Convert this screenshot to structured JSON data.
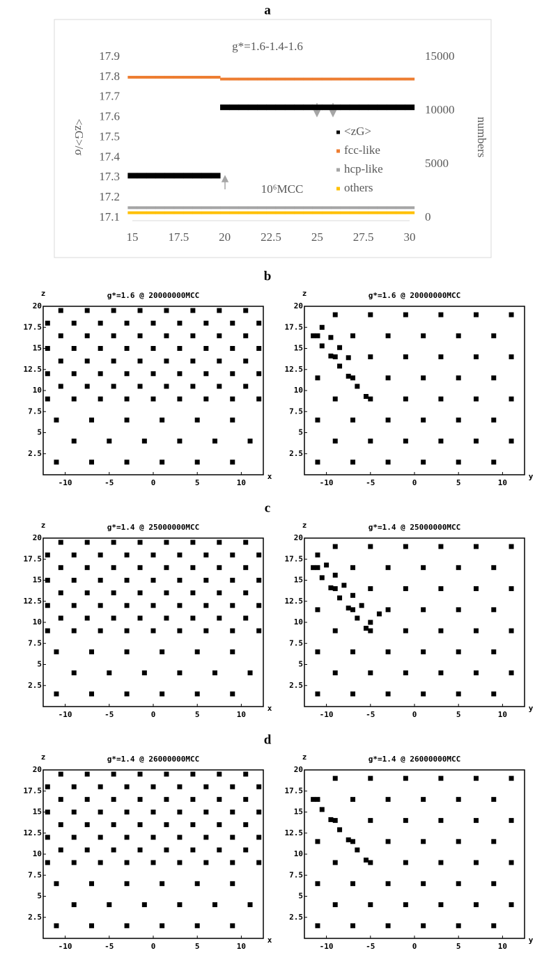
{
  "panels": [
    "a",
    "b",
    "c",
    "d"
  ],
  "chart_data": [
    {
      "type": "scatter",
      "title": "g*=1.6-1.4-1.6",
      "x_label": "10⁶MCC",
      "y_label": "<zG>/σ",
      "y2_label": "numbers",
      "xlim": [
        15,
        30
      ],
      "ylim": [
        17.1,
        17.9
      ],
      "y2lim": [
        0,
        15000
      ],
      "xticks": [
        15,
        17.5,
        20,
        22.5,
        25,
        27.5,
        30
      ],
      "yticks": [
        17.1,
        17.2,
        17.3,
        17.4,
        17.5,
        17.6,
        17.7,
        17.8,
        17.9
      ],
      "y2ticks": [
        0,
        5000,
        10000,
        15000
      ],
      "legend": "right",
      "x": [
        15,
        15.5,
        16,
        16.5,
        17,
        17.5,
        18,
        18.5,
        19,
        19.5,
        20,
        20.5,
        21,
        21.5,
        22,
        22.5,
        23,
        23.5,
        24,
        24.5,
        25,
        25.5,
        26,
        26.5,
        27,
        27.5,
        28,
        28.5,
        29,
        29.5,
        30
      ],
      "series": [
        {
          "name": "<zG>",
          "color": "#000000",
          "values": [
            17.31,
            17.31,
            17.31,
            17.31,
            17.31,
            17.31,
            17.31,
            17.31,
            17.31,
            17.31,
            17.65,
            17.65,
            17.65,
            17.65,
            17.65,
            17.65,
            17.65,
            17.65,
            17.65,
            17.65,
            17.65,
            17.65,
            17.65,
            17.65,
            17.65,
            17.65,
            17.65,
            17.65,
            17.65,
            17.65,
            17.65
          ]
        },
        {
          "name": "fcc-like",
          "color": "#ed7d31",
          "axis": "y2",
          "values": [
            13120,
            13120,
            13120,
            13120,
            13120,
            13120,
            13120,
            13120,
            13120,
            13120,
            12950,
            12950,
            12950,
            12950,
            12950,
            12950,
            12950,
            12950,
            12950,
            12950,
            12950,
            12950,
            12950,
            12950,
            12950,
            12950,
            12950,
            12950,
            12950,
            12950,
            12950
          ]
        },
        {
          "name": "hcp-like",
          "color": "#a5a5a5",
          "axis": "y2",
          "values": [
            950,
            950,
            950,
            950,
            950,
            950,
            950,
            950,
            950,
            950,
            950,
            950,
            950,
            950,
            950,
            950,
            950,
            950,
            950,
            950,
            950,
            950,
            950,
            950,
            950,
            950,
            950,
            950,
            950,
            950,
            950
          ]
        },
        {
          "name": "others",
          "color": "#ffc000",
          "axis": "y2",
          "values": [
            480,
            480,
            480,
            480,
            480,
            480,
            480,
            480,
            480,
            480,
            480,
            480,
            480,
            480,
            480,
            480,
            480,
            480,
            480,
            480,
            480,
            480,
            480,
            480,
            480,
            480,
            480,
            480,
            480,
            480,
            480
          ]
        }
      ]
    },
    {
      "type": "scatter",
      "title": "g*=1.6 @ 20000000MCC",
      "x_label": "x",
      "y_label": "z",
      "xlim": [
        -12.5,
        12.5
      ],
      "ylim": [
        0,
        20
      ],
      "xticks": [
        -10,
        -5,
        0,
        5,
        10
      ],
      "yticks": [
        2.5,
        5,
        7.5,
        10,
        12.5,
        15,
        17.5,
        20
      ],
      "color": "#000000",
      "x": [
        -11,
        -7,
        -3,
        1,
        5,
        9,
        -9,
        -5,
        -1,
        3,
        7,
        11,
        -11,
        -7,
        -3,
        1,
        5,
        9,
        -12,
        -9,
        -6,
        -3,
        0,
        3,
        6,
        9,
        12,
        -10.5,
        -7.5,
        -4.5,
        -1.5,
        1.5,
        4.5,
        7.5,
        10.5,
        -12,
        -9,
        -6,
        -3,
        0,
        3,
        6,
        9,
        12,
        -10.5,
        -7.5,
        -4.5,
        -1.5,
        1.5,
        4.5,
        7.5,
        10.5,
        -12,
        -9,
        -6,
        -3,
        0,
        3,
        6,
        9,
        12,
        -10.5,
        -7.5,
        -4.5,
        -1.5,
        1.5,
        4.5,
        7.5,
        10.5,
        -12,
        -9,
        -6,
        -3,
        0,
        3,
        6,
        9,
        12,
        -10.5,
        -7.5,
        -4.5,
        -1.5,
        1.5,
        4.5,
        7.5,
        10.5
      ],
      "values": [
        1.5,
        1.5,
        1.5,
        1.5,
        1.5,
        1.5,
        4,
        4,
        4,
        4,
        4,
        4,
        6.5,
        6.5,
        6.5,
        6.5,
        6.5,
        6.5,
        9,
        9,
        9,
        9,
        9,
        9,
        9,
        9,
        9,
        10.5,
        10.5,
        10.5,
        10.5,
        10.5,
        10.5,
        10.5,
        10.5,
        12,
        12,
        12,
        12,
        12,
        12,
        12,
        12,
        12,
        13.5,
        13.5,
        13.5,
        13.5,
        13.5,
        13.5,
        13.5,
        13.5,
        15,
        15,
        15,
        15,
        15,
        15,
        15,
        15,
        15,
        16.5,
        16.5,
        16.5,
        16.5,
        16.5,
        16.5,
        16.5,
        16.5,
        18,
        18,
        18,
        18,
        18,
        18,
        18,
        18,
        18,
        19.5,
        19.5,
        19.5,
        19.5,
        19.5,
        19.5,
        19.5,
        19.5
      ]
    },
    {
      "type": "scatter",
      "title": "g*=1.6 @ 20000000MCC",
      "x_label": "y",
      "y_label": "z",
      "xlim": [
        -12.5,
        12.5
      ],
      "ylim": [
        0,
        20
      ],
      "xticks": [
        -10,
        -5,
        0,
        5,
        10
      ],
      "yticks": [
        2.5,
        5,
        7.5,
        10,
        12.5,
        15,
        17.5,
        20
      ],
      "color": "#000000",
      "x": [
        -11,
        -7,
        -3,
        1,
        5,
        9,
        -9,
        -5,
        -1,
        3,
        7,
        11,
        -11,
        -7,
        -3,
        1,
        5,
        9,
        -9,
        -5,
        -1,
        3,
        7,
        11,
        -11,
        -7,
        -3,
        1,
        5,
        9,
        -9,
        -5,
        -1,
        3,
        7,
        11,
        -11,
        -7,
        -3,
        1,
        5,
        9,
        -9,
        -5,
        -1,
        3,
        7,
        11,
        -11.5,
        -10.5,
        -9.5,
        -8.5,
        -7.5,
        -6.5,
        -5.5,
        -10.5,
        -9.5,
        -8.5,
        -7.5
      ],
      "values": [
        1.5,
        1.5,
        1.5,
        1.5,
        1.5,
        1.5,
        4,
        4,
        4,
        4,
        4,
        4,
        6.5,
        6.5,
        6.5,
        6.5,
        6.5,
        6.5,
        9,
        9,
        9,
        9,
        9,
        9,
        11.5,
        11.5,
        11.5,
        11.5,
        11.5,
        11.5,
        14,
        14,
        14,
        14,
        14,
        14,
        16.5,
        16.5,
        16.5,
        16.5,
        16.5,
        16.5,
        19,
        19,
        19,
        19,
        19,
        19,
        16.5,
        15.3,
        14.1,
        12.9,
        11.7,
        10.5,
        9.3,
        17.5,
        16.3,
        15.1,
        13.9
      ]
    },
    {
      "type": "scatter",
      "title": "g*=1.4 @ 25000000MCC",
      "x_label": "x",
      "y_label": "z",
      "xlim": [
        -12.5,
        12.5
      ],
      "ylim": [
        0,
        20
      ],
      "xticks": [
        -10,
        -5,
        0,
        5,
        10
      ],
      "yticks": [
        2.5,
        5,
        7.5,
        10,
        12.5,
        15,
        17.5,
        20
      ],
      "color": "#000000",
      "x": [
        -11,
        -7,
        -3,
        1,
        5,
        9,
        -9,
        -5,
        -1,
        3,
        7,
        11,
        -11,
        -7,
        -3,
        1,
        5,
        9,
        -12,
        -9,
        -6,
        -3,
        0,
        3,
        6,
        9,
        12,
        -10.5,
        -7.5,
        -4.5,
        -1.5,
        1.5,
        4.5,
        7.5,
        10.5,
        -12,
        -9,
        -6,
        -3,
        0,
        3,
        6,
        9,
        12,
        -10.5,
        -7.5,
        -4.5,
        -1.5,
        1.5,
        4.5,
        7.5,
        10.5,
        -12,
        -9,
        -6,
        -3,
        0,
        3,
        6,
        9,
        12,
        -10.5,
        -7.5,
        -4.5,
        -1.5,
        1.5,
        4.5,
        7.5,
        10.5,
        -12,
        -9,
        -6,
        -3,
        0,
        3,
        6,
        9,
        12,
        -10.5,
        -7.5,
        -4.5,
        -1.5,
        1.5,
        4.5,
        7.5,
        10.5
      ],
      "values": [
        1.5,
        1.5,
        1.5,
        1.5,
        1.5,
        1.5,
        4,
        4,
        4,
        4,
        4,
        4,
        6.5,
        6.5,
        6.5,
        6.5,
        6.5,
        6.5,
        9,
        9,
        9,
        9,
        9,
        9,
        9,
        9,
        9,
        10.5,
        10.5,
        10.5,
        10.5,
        10.5,
        10.5,
        10.5,
        10.5,
        12,
        12,
        12,
        12,
        12,
        12,
        12,
        12,
        12,
        13.5,
        13.5,
        13.5,
        13.5,
        13.5,
        13.5,
        13.5,
        13.5,
        15,
        15,
        15,
        15,
        15,
        15,
        15,
        15,
        15,
        16.5,
        16.5,
        16.5,
        16.5,
        16.5,
        16.5,
        16.5,
        16.5,
        18,
        18,
        18,
        18,
        18,
        18,
        18,
        18,
        18,
        19.5,
        19.5,
        19.5,
        19.5,
        19.5,
        19.5,
        19.5,
        19.5
      ]
    },
    {
      "type": "scatter",
      "title": "g*=1.4 @ 25000000MCC",
      "x_label": "y",
      "y_label": "z",
      "xlim": [
        -12.5,
        12.5
      ],
      "ylim": [
        0,
        20
      ],
      "xticks": [
        -10,
        -5,
        0,
        5,
        10
      ],
      "yticks": [
        2.5,
        5,
        7.5,
        10,
        12.5,
        15,
        17.5,
        20
      ],
      "color": "#000000",
      "x": [
        -11,
        -7,
        -3,
        1,
        5,
        9,
        -9,
        -5,
        -1,
        3,
        7,
        11,
        -11,
        -7,
        -3,
        1,
        5,
        9,
        -9,
        -5,
        -1,
        3,
        7,
        11,
        -11,
        -7,
        -3,
        1,
        5,
        9,
        -9,
        -5,
        -1,
        3,
        7,
        11,
        -11,
        -7,
        -3,
        1,
        5,
        9,
        -9,
        -5,
        -1,
        3,
        7,
        11,
        -11.5,
        -10.5,
        -9.5,
        -8.5,
        -7.5,
        -6.5,
        -5.5,
        -11,
        -10,
        -9,
        -8,
        -7,
        -6,
        -5,
        -4
      ],
      "values": [
        1.5,
        1.5,
        1.5,
        1.5,
        1.5,
        1.5,
        4,
        4,
        4,
        4,
        4,
        4,
        6.5,
        6.5,
        6.5,
        6.5,
        6.5,
        6.5,
        9,
        9,
        9,
        9,
        9,
        9,
        11.5,
        11.5,
        11.5,
        11.5,
        11.5,
        11.5,
        14,
        14,
        14,
        14,
        14,
        14,
        16.5,
        16.5,
        16.5,
        16.5,
        16.5,
        16.5,
        19,
        19,
        19,
        19,
        19,
        19,
        16.5,
        15.3,
        14.1,
        12.9,
        11.7,
        10.5,
        9.3,
        18,
        16.8,
        15.6,
        14.4,
        13.2,
        12,
        10,
        11
      ]
    },
    {
      "type": "scatter",
      "title": "g*=1.4 @ 26000000MCC",
      "x_label": "x",
      "y_label": "z",
      "xlim": [
        -12.5,
        12.5
      ],
      "ylim": [
        0,
        20
      ],
      "xticks": [
        -10,
        -5,
        0,
        5,
        10
      ],
      "yticks": [
        2.5,
        5,
        7.5,
        10,
        12.5,
        15,
        17.5,
        20
      ],
      "color": "#000000",
      "x": [
        -11,
        -7,
        -3,
        1,
        5,
        9,
        -9,
        -5,
        -1,
        3,
        7,
        11,
        -11,
        -7,
        -3,
        1,
        5,
        9,
        -12,
        -9,
        -6,
        -3,
        0,
        3,
        6,
        9,
        12,
        -10.5,
        -7.5,
        -4.5,
        -1.5,
        1.5,
        4.5,
        7.5,
        10.5,
        -12,
        -9,
        -6,
        -3,
        0,
        3,
        6,
        9,
        12,
        -10.5,
        -7.5,
        -4.5,
        -1.5,
        1.5,
        4.5,
        7.5,
        10.5,
        -12,
        -9,
        -6,
        -3,
        0,
        3,
        6,
        9,
        12,
        -10.5,
        -7.5,
        -4.5,
        -1.5,
        1.5,
        4.5,
        7.5,
        10.5,
        -12,
        -9,
        -6,
        -3,
        0,
        3,
        6,
        9,
        12,
        -10.5,
        -7.5,
        -4.5,
        -1.5,
        1.5,
        4.5,
        7.5,
        10.5
      ],
      "values": [
        1.5,
        1.5,
        1.5,
        1.5,
        1.5,
        1.5,
        4,
        4,
        4,
        4,
        4,
        4,
        6.5,
        6.5,
        6.5,
        6.5,
        6.5,
        6.5,
        9,
        9,
        9,
        9,
        9,
        9,
        9,
        9,
        9,
        10.5,
        10.5,
        10.5,
        10.5,
        10.5,
        10.5,
        10.5,
        10.5,
        12,
        12,
        12,
        12,
        12,
        12,
        12,
        12,
        12,
        13.5,
        13.5,
        13.5,
        13.5,
        13.5,
        13.5,
        13.5,
        13.5,
        15,
        15,
        15,
        15,
        15,
        15,
        15,
        15,
        15,
        16.5,
        16.5,
        16.5,
        16.5,
        16.5,
        16.5,
        16.5,
        16.5,
        18,
        18,
        18,
        18,
        18,
        18,
        18,
        18,
        18,
        19.5,
        19.5,
        19.5,
        19.5,
        19.5,
        19.5,
        19.5,
        19.5
      ]
    },
    {
      "type": "scatter",
      "title": "g*=1.4 @ 26000000MCC",
      "x_label": "y",
      "y_label": "z",
      "xlim": [
        -12.5,
        12.5
      ],
      "ylim": [
        0,
        20
      ],
      "xticks": [
        -10,
        -5,
        0,
        5,
        10
      ],
      "yticks": [
        2.5,
        5,
        7.5,
        10,
        12.5,
        15,
        17.5,
        20
      ],
      "color": "#000000",
      "x": [
        -11,
        -7,
        -3,
        1,
        5,
        9,
        -9,
        -5,
        -1,
        3,
        7,
        11,
        -11,
        -7,
        -3,
        1,
        5,
        9,
        -9,
        -5,
        -1,
        3,
        7,
        11,
        -11,
        -7,
        -3,
        1,
        5,
        9,
        -9,
        -5,
        -1,
        3,
        7,
        11,
        -11,
        -7,
        -3,
        1,
        5,
        9,
        -9,
        -5,
        -1,
        3,
        7,
        11,
        -11.5,
        -10.5,
        -9.5,
        -8.5,
        -7.5,
        -6.5,
        -5.5
      ],
      "values": [
        1.5,
        1.5,
        1.5,
        1.5,
        1.5,
        1.5,
        4,
        4,
        4,
        4,
        4,
        4,
        6.5,
        6.5,
        6.5,
        6.5,
        6.5,
        6.5,
        9,
        9,
        9,
        9,
        9,
        9,
        11.5,
        11.5,
        11.5,
        11.5,
        11.5,
        11.5,
        14,
        14,
        14,
        14,
        14,
        14,
        16.5,
        16.5,
        16.5,
        16.5,
        16.5,
        16.5,
        19,
        19,
        19,
        19,
        19,
        19,
        16.5,
        15.3,
        14.1,
        12.9,
        11.7,
        10.5,
        9.3
      ]
    }
  ]
}
